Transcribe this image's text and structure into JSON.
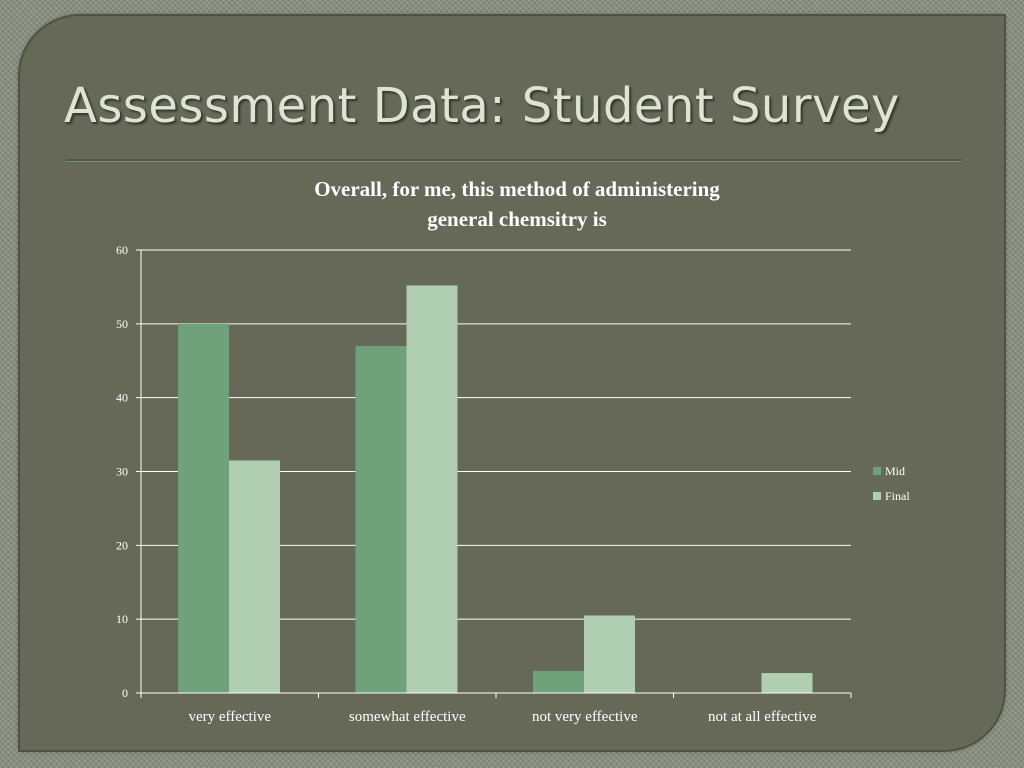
{
  "slide": {
    "title": "Assessment Data: Student Survey"
  },
  "chart_data": {
    "type": "bar",
    "title_lines": [
      "Overall, for me, this method of administering",
      "general chemsitry is"
    ],
    "categories": [
      "very effective",
      "somewhat effective",
      "not very effective",
      "not at all effective"
    ],
    "series": [
      {
        "name": "Mid",
        "values": [
          50,
          47,
          3,
          0
        ],
        "color": "#6fa27a"
      },
      {
        "name": "Final",
        "values": [
          31.5,
          55.2,
          10.5,
          2.7
        ],
        "color": "#b0ceb1"
      }
    ],
    "ylim": [
      0,
      60
    ],
    "yticks": [
      "0",
      "10",
      "20",
      "30",
      "40",
      "50",
      "60"
    ],
    "xlabel": "",
    "ylabel": "",
    "grid": true,
    "legend": "right",
    "gridline_color": "#ffffff"
  }
}
